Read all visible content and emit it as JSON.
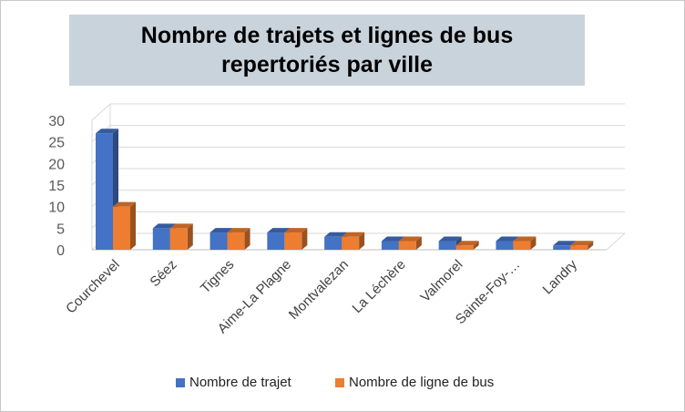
{
  "chart_data": {
    "type": "bar",
    "title": "Nombre de trajets et lignes de bus repertoriés par ville",
    "categories": [
      "Courchevel",
      "Séez",
      "Tignes",
      "Aime-La Plagne",
      "Montvalezan",
      "La Léchère",
      "Valmorel",
      "Sainte-Foy-…",
      "Landry"
    ],
    "series": [
      {
        "name": "Nombre de trajet",
        "values": [
          27,
          5,
          4,
          4,
          3,
          2,
          2,
          2,
          1
        ],
        "color": "#4472c4"
      },
      {
        "name": "Nombre de ligne de bus",
        "values": [
          10,
          5,
          4,
          4,
          3,
          2,
          1,
          2,
          1
        ],
        "color": "#ed7d31"
      }
    ],
    "yticks": [
      0,
      5,
      10,
      15,
      20,
      25,
      30
    ],
    "ylim": [
      0,
      30
    ],
    "grid": true,
    "legend_position": "bottom",
    "style": "3d-clustered-column"
  }
}
